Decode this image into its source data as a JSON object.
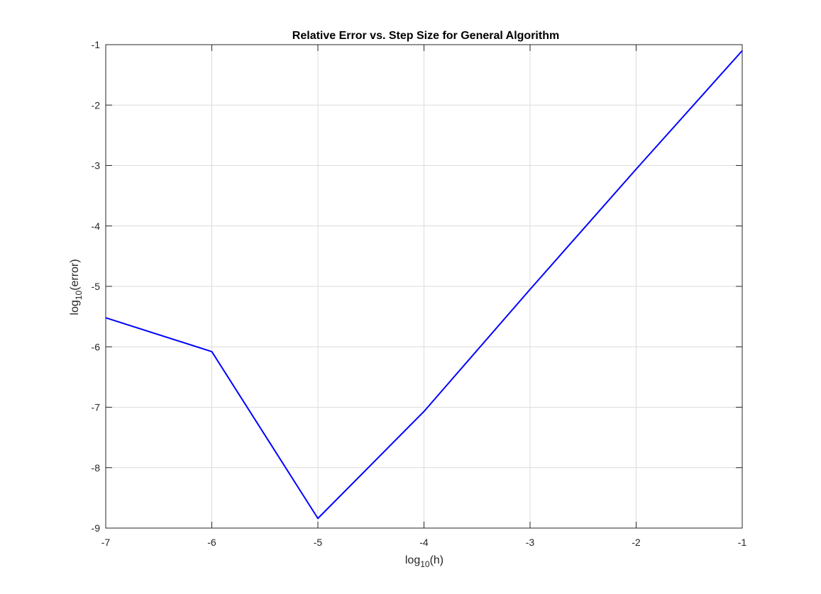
{
  "chart_data": {
    "type": "line",
    "title": "Relative Error vs. Step Size for General Algorithm",
    "xlabel": {
      "prefix": "log",
      "subscript": "10",
      "suffix": "(h)"
    },
    "ylabel": {
      "prefix": "log",
      "subscript": "10",
      "suffix": "(error)"
    },
    "xlim": [
      -7,
      -1
    ],
    "ylim": [
      -9,
      -1
    ],
    "xticks": [
      -7,
      -6,
      -5,
      -4,
      -3,
      -2,
      -1
    ],
    "yticks": [
      -9,
      -8,
      -7,
      -6,
      -5,
      -4,
      -3,
      -2,
      -1
    ],
    "xtick_labels": [
      "-7",
      "-6",
      "-5",
      "-4",
      "-3",
      "-2",
      "-1"
    ],
    "ytick_labels": [
      "-9",
      "-8",
      "-7",
      "-6",
      "-5",
      "-4",
      "-3",
      "-2",
      "-1"
    ],
    "grid": true,
    "series": [
      {
        "color": "#0000ff",
        "x": [
          -7,
          -6,
          -5,
          -4,
          -3,
          -2,
          -1
        ],
        "y": [
          -5.52,
          -6.08,
          -8.84,
          -7.07,
          -5.05,
          -3.06,
          -1.1
        ]
      }
    ]
  },
  "colors": {
    "grid": "#dcdcdc",
    "axes": "#262626",
    "background": "#ffffff"
  }
}
